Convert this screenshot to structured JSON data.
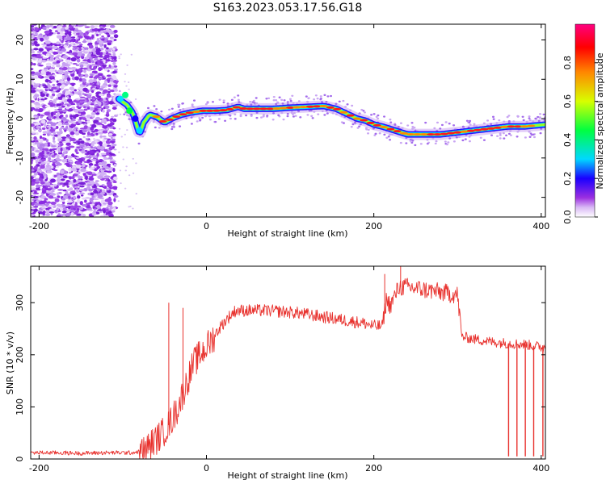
{
  "title": "S163.2023.053.17.56.G18",
  "chart_data": [
    {
      "type": "heatmap",
      "xlabel": "Height of straight line (km)",
      "ylabel": "Frequency (Hz)",
      "xlim": [
        -210,
        405
      ],
      "ylim": [
        -25,
        24
      ],
      "xticks": [
        -200,
        0,
        200,
        400
      ],
      "yticks": [
        -20,
        -10,
        0,
        10,
        20
      ],
      "colorbar": {
        "label": "Normalized spectral amplitude",
        "range": [
          0,
          1
        ],
        "ticks": [
          0.0,
          0.2,
          0.4,
          0.6,
          0.8
        ],
        "tick_labels": [
          "0.0",
          "0.2",
          "0.4",
          "0.6",
          "0.8"
        ],
        "colormap": [
          "#ffffff",
          "#d9b8f5",
          "#9b2fe0",
          "#1a00ff",
          "#00d8ff",
          "#00ff40",
          "#d8ff00",
          "#ff8800",
          "#ff0000",
          "#ff0080"
        ]
      },
      "noise_region_x": [
        -210,
        -108
      ],
      "ridge": {
        "x": [
          -105,
          -95,
          -88,
          -80,
          -75,
          -68,
          -60,
          -50,
          -42,
          -30,
          -20,
          -5,
          10,
          25,
          38,
          45,
          60,
          80,
          100,
          120,
          140,
          155,
          170,
          180,
          190,
          200,
          210,
          225,
          240,
          260,
          280,
          300,
          320,
          340,
          360,
          380,
          405
        ],
        "frequency": [
          5,
          3.5,
          1.5,
          -4,
          -1,
          1,
          0.5,
          -1,
          0,
          1,
          1.5,
          2,
          2,
          2.2,
          3,
          2.5,
          2.5,
          2.5,
          2.8,
          3,
          3.2,
          2.5,
          1,
          0,
          -0.5,
          -1.5,
          -2,
          -3,
          -4,
          -4,
          -4,
          -3.5,
          -3,
          -2.5,
          -2,
          -2,
          -1.5
        ]
      }
    },
    {
      "type": "line",
      "xlabel": "Height of straight line (km)",
      "ylabel": "SNR (10 * v/v)",
      "xlim": [
        -210,
        405
      ],
      "ylim": [
        0,
        370
      ],
      "xticks": [
        -200,
        0,
        200,
        400
      ],
      "yticks": [
        0,
        100,
        200,
        300
      ],
      "color": "#e8322e",
      "series": [
        {
          "x": [
            -210,
            -180,
            -150,
            -120,
            -90,
            -75,
            -65,
            -55,
            -45,
            -35,
            -25,
            -15,
            -5,
            5,
            15,
            25,
            35,
            50,
            70,
            90,
            110,
            130,
            150,
            170,
            190,
            200,
            210,
            215,
            220,
            230,
            240,
            260,
            280,
            300,
            305,
            320,
            340,
            360,
            380,
            400,
            405
          ],
          "values": [
            12,
            12,
            11,
            12,
            12,
            15,
            30,
            45,
            65,
            95,
            140,
            185,
            205,
            225,
            250,
            270,
            285,
            285,
            285,
            283,
            280,
            275,
            270,
            265,
            260,
            255,
            255,
            305,
            295,
            330,
            330,
            325,
            320,
            315,
            235,
            230,
            225,
            222,
            220,
            215,
            215
          ],
          "spikes": [
            {
              "x": -45,
              "y": 300
            },
            {
              "x": -28,
              "y": 290
            },
            {
              "x": 213,
              "y": 355
            },
            {
              "x": 232,
              "y": 370
            }
          ],
          "dropouts": [
            {
              "x": 361,
              "y": 5
            },
            {
              "x": 371,
              "y": 5
            },
            {
              "x": 381,
              "y": 5
            },
            {
              "x": 391,
              "y": 5
            },
            {
              "x": 402,
              "y": 5
            }
          ]
        }
      ]
    }
  ]
}
